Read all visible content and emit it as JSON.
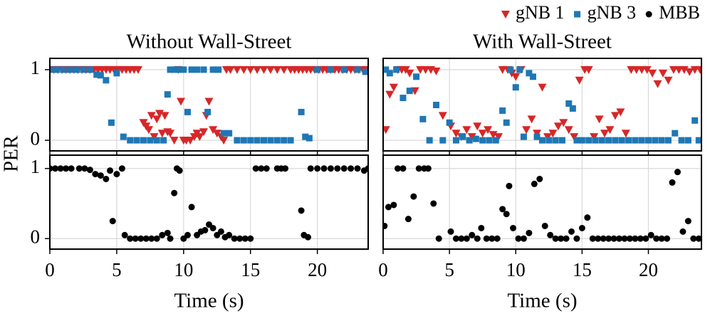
{
  "y_label": "PER",
  "chart_data": [
    {
      "type": "scatter",
      "title": "Without Wall-Street",
      "xlim": [
        0,
        23.8
      ],
      "ylim": [
        -0.15,
        1.16
      ],
      "xticks": [
        0,
        5,
        10,
        15,
        20
      ],
      "yticks": [
        0,
        1
      ],
      "grid": true,
      "series": [
        {
          "name": "gNB 1",
          "color": "#d62728",
          "marker": "v",
          "x": [
            0,
            0.3,
            0.6,
            0.9,
            1.2,
            1.5,
            1.8,
            2.1,
            2.4,
            2.7,
            3.0,
            3.3,
            3.6,
            3.9,
            4.2,
            4.5,
            4.8,
            5.1,
            5.4,
            5.7,
            6.0,
            6.3,
            6.6,
            7.0,
            7.2,
            7.4,
            7.6,
            7.8,
            8.0,
            8.2,
            8.4,
            8.6,
            8.8,
            9.0,
            9.3,
            9.6,
            9.8,
            10.0,
            10.2,
            10.5,
            10.8,
            11.0,
            11.2,
            11.5,
            11.7,
            11.9,
            12.2,
            12.5,
            12.8,
            13.0,
            13.2,
            13.5,
            14,
            14.5,
            15,
            15.5,
            16,
            16.5,
            17,
            17.5,
            18,
            18.3,
            18.6,
            18.9,
            19.2,
            19.5,
            19.8,
            20.1,
            20.4,
            20.7,
            21,
            21.3,
            21.6,
            21.9,
            22.2,
            22.5,
            22.8,
            23.1,
            23.4,
            23.7
          ],
          "values": [
            1,
            1,
            1,
            1,
            1,
            1,
            1,
            1,
            1,
            1,
            1,
            1,
            1,
            1,
            1,
            1,
            1,
            1,
            1,
            1,
            1,
            1,
            1,
            0.25,
            0.2,
            0.15,
            0.35,
            0.05,
            0.3,
            0.38,
            0.1,
            0.35,
            0.12,
            0.1,
            0,
            1,
            0.55,
            0,
            0,
            0,
            0.05,
            0.1,
            0.05,
            0.12,
            0.35,
            0.55,
            0.15,
            0.1,
            0.05,
            0,
            1,
            1,
            1,
            1,
            1,
            1,
            1,
            1,
            1,
            1,
            1,
            1,
            1,
            1,
            1,
            1,
            1,
            1,
            1,
            1,
            1,
            1,
            1,
            1,
            1,
            1,
            1,
            1,
            1,
            1
          ]
        },
        {
          "name": "gNB 3",
          "color": "#1f77b4",
          "marker": "s",
          "x": [
            0,
            0.5,
            1,
            1.5,
            2,
            2.5,
            3,
            3.5,
            3.8,
            4.2,
            4.6,
            5.0,
            5.5,
            6,
            6.5,
            7,
            7.5,
            8,
            8.5,
            8.8,
            9.0,
            9.3,
            9.6,
            10,
            10.3,
            10.6,
            11,
            11.5,
            11.8,
            12.2,
            12.6,
            13,
            13.4,
            14,
            14.5,
            15,
            15.5,
            16,
            16.5,
            17,
            17.5,
            18,
            18.8,
            19.1,
            19.4,
            20,
            21,
            22,
            23,
            23.6
          ],
          "values": [
            1,
            1,
            1,
            1,
            1,
            1,
            1,
            0.93,
            0.92,
            0.85,
            0.25,
            0.95,
            0.05,
            0,
            0,
            0,
            0,
            0,
            0,
            0.65,
            1,
            1,
            1,
            1,
            0.4,
            1,
            1,
            1,
            0.4,
            1,
            1,
            0.1,
            0.1,
            0,
            0,
            0,
            0,
            0,
            0,
            0,
            0,
            0,
            0.4,
            0.05,
            0.03,
            1,
            1,
            1,
            1,
            0.97
          ]
        }
      ]
    },
    {
      "type": "scatter",
      "title": "With Wall-Street",
      "xlim": [
        0,
        24
      ],
      "ylim": [
        -0.15,
        1.16
      ],
      "xticks": [
        0,
        5,
        10,
        15,
        20
      ],
      "yticks": [
        0,
        1
      ],
      "grid": true,
      "series": [
        {
          "color": "#d62728",
          "marker": "v",
          "x": [
            0.2,
            0.5,
            0.8,
            1.1,
            1.4,
            1.7,
            2.0,
            2.4,
            2.8,
            3.2,
            3.6,
            4.0,
            4.5,
            5.1,
            5.5,
            5.9,
            6.3,
            6.7,
            7.1,
            7.5,
            7.9,
            8.3,
            8.7,
            9.0,
            9.4,
            9.7,
            10.0,
            10.4,
            10.8,
            11.2,
            11.6,
            12.0,
            12.4,
            12.8,
            13.2,
            13.6,
            14.0,
            14.4,
            14.8,
            15.2,
            15.5,
            15.9,
            16.3,
            16.7,
            17.1,
            17.5,
            17.9,
            18.3,
            18.7,
            19.1,
            19.5,
            19.9,
            20.3,
            20.7,
            21.1,
            21.5,
            21.9,
            22.3,
            22.7,
            23.1,
            23.5,
            23.9
          ],
          "values": [
            0.15,
            0.65,
            0.75,
            1,
            1,
            1,
            0.95,
            0.7,
            1,
            1,
            1,
            0.98,
            0.35,
            0.2,
            0.1,
            0.05,
            0.15,
            0.05,
            0.2,
            0.1,
            0.15,
            0.08,
            0.05,
            1,
            1,
            0.95,
            0.9,
            1,
            0.15,
            0.3,
            0.1,
            0.75,
            0.05,
            0.1,
            0.2,
            0.25,
            0.15,
            0.05,
            0.85,
            1,
            1,
            0.05,
            0.3,
            0.1,
            0.15,
            0.35,
            0.4,
            0.1,
            1,
            1,
            1,
            1,
            0.95,
            0.8,
            0.95,
            0.85,
            1,
            1,
            1,
            0.97,
            1,
            1
          ]
        },
        {
          "color": "#1f77b4",
          "marker": "s",
          "x": [
            0.2,
            0.5,
            1.0,
            1.5,
            2.0,
            2.5,
            3.0,
            3.5,
            4.0,
            4.5,
            5.0,
            5.5,
            6,
            6.5,
            7,
            7.5,
            8,
            8.5,
            9,
            9.3,
            9.6,
            10,
            10.3,
            10.6,
            11,
            11.3,
            11.6,
            12,
            12.5,
            13,
            13.5,
            14,
            14.3,
            14.6,
            15,
            15.5,
            16,
            16.5,
            17,
            17.5,
            18,
            18.5,
            19,
            19.5,
            20,
            20.5,
            21,
            21.5,
            22,
            22.5,
            23,
            23.5,
            23.8
          ],
          "values": [
            1,
            0.95,
            1,
            0.6,
            0.7,
            0.9,
            0.3,
            0,
            0.5,
            0,
            0.25,
            0,
            0.05,
            0,
            0.02,
            0,
            0,
            0,
            0.42,
            0.25,
            1,
            0.75,
            1,
            0.05,
            0.95,
            0.9,
            0.05,
            0,
            0,
            0,
            0,
            0.52,
            0.45,
            0,
            0,
            0,
            0,
            0,
            0,
            0,
            0,
            0,
            0,
            0,
            0,
            0,
            0,
            0,
            0.1,
            0,
            0,
            0.28,
            0
          ]
        }
      ]
    },
    {
      "type": "scatter",
      "xlim": [
        0,
        23.8
      ],
      "ylim": [
        -0.15,
        1.19
      ],
      "xticks": [
        0,
        5,
        10,
        15,
        20
      ],
      "yticks": [
        0,
        1
      ],
      "grid": true,
      "x_label": "Time (s)",
      "series": [
        {
          "name": "MBB",
          "color": "#000000",
          "marker": "o",
          "x": [
            0,
            0.4,
            0.8,
            1.2,
            1.6,
            2.2,
            2.6,
            3.0,
            3.4,
            3.8,
            4.2,
            4.5,
            4.7,
            5.0,
            5.4,
            5.6,
            6,
            6.4,
            6.8,
            7.2,
            7.6,
            8,
            8.4,
            8.8,
            9.0,
            9.3,
            9.5,
            9.7,
            10,
            10.3,
            10.6,
            11,
            11.3,
            11.6,
            11.9,
            12.2,
            12.5,
            12.8,
            13.1,
            13.4,
            13.8,
            14.2,
            14.6,
            15,
            15.4,
            15.8,
            16.2,
            17,
            17.3,
            17.6,
            18.8,
            19,
            19.3,
            19.5,
            20,
            20.5,
            21,
            21.5,
            22,
            22.5,
            23,
            23.5,
            23.8
          ],
          "values": [
            1,
            1,
            1,
            1,
            1,
            1,
            1,
            0.98,
            0.92,
            0.9,
            0.85,
            0.97,
            0.25,
            0.92,
            1,
            0.05,
            0,
            0,
            0,
            0,
            0,
            0,
            0.05,
            0.08,
            0.0,
            0.65,
            1,
            0.97,
            0,
            0.05,
            0.45,
            0.05,
            0.1,
            0.12,
            0.2,
            0.15,
            0.05,
            0.1,
            0.02,
            0.05,
            0,
            0,
            0,
            0,
            1,
            1,
            1,
            1,
            1,
            1,
            0.4,
            0.05,
            0.02,
            1,
            1,
            1,
            1,
            1,
            1,
            1,
            1,
            0.97,
            1
          ]
        }
      ]
    },
    {
      "type": "scatter",
      "xlim": [
        0,
        24
      ],
      "ylim": [
        -0.15,
        1.19
      ],
      "xticks": [
        0,
        5,
        10,
        15,
        20
      ],
      "yticks": [
        0,
        1
      ],
      "grid": true,
      "x_label": "Time (s)",
      "series": [
        {
          "color": "#000000",
          "marker": "o",
          "x": [
            0.1,
            0.4,
            0.8,
            1.1,
            1.5,
            1.9,
            2.3,
            2.7,
            3.1,
            3.4,
            3.8,
            4.2,
            5.1,
            5.5,
            5.9,
            6.3,
            6.7,
            7.1,
            7.4,
            7.8,
            8.2,
            8.6,
            9.0,
            9.3,
            9.5,
            9.8,
            10.2,
            10.6,
            11.0,
            11.4,
            11.8,
            12.2,
            12.6,
            13.0,
            13.4,
            13.8,
            14.2,
            14.6,
            15.0,
            15.4,
            15.8,
            16.2,
            16.6,
            17,
            17.4,
            17.8,
            18.2,
            18.6,
            19,
            19.4,
            19.8,
            20.2,
            20.6,
            21,
            21.4,
            21.8,
            22.2,
            22.6,
            23,
            23.4,
            23.8
          ],
          "values": [
            0.18,
            0.45,
            0.48,
            1,
            1,
            0.28,
            0.6,
            1,
            1,
            1,
            0.5,
            0,
            0.1,
            0,
            0,
            0,
            0.05,
            0,
            0.15,
            0,
            0,
            0,
            0.42,
            0.35,
            0.75,
            0.15,
            0,
            0,
            0.08,
            0.78,
            0.85,
            0.18,
            0.05,
            0,
            0,
            0,
            0.1,
            0,
            0.15,
            0.3,
            0,
            0,
            0,
            0,
            0,
            0,
            0,
            0,
            0,
            0,
            0,
            0.05,
            0,
            0,
            0,
            0.8,
            0.95,
            0.1,
            0.25,
            0,
            0
          ]
        }
      ]
    }
  ]
}
